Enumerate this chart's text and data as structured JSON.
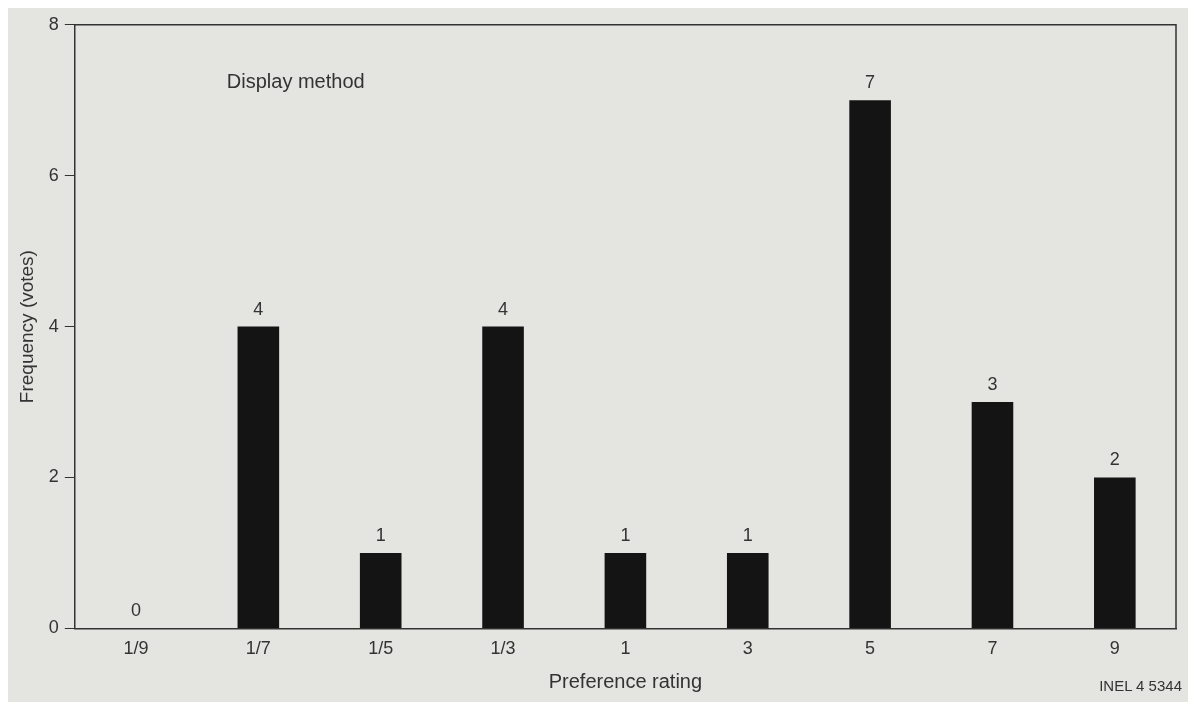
{
  "chart_data": {
    "type": "bar",
    "title": "Display method",
    "xlabel": "Preference rating",
    "ylabel": "Frequency (votes)",
    "categories": [
      "1/9",
      "1/7",
      "1/5",
      "1/3",
      "1",
      "3",
      "5",
      "7",
      "9"
    ],
    "values": [
      0,
      4,
      1,
      4,
      1,
      1,
      7,
      3,
      2
    ],
    "color": "#141414",
    "ylim": [
      0,
      8
    ],
    "yticks": [
      0,
      2,
      4,
      6,
      8
    ],
    "grid": false,
    "legend": false,
    "data_labels": true,
    "annotations": [
      "INEL 4 5344"
    ]
  }
}
